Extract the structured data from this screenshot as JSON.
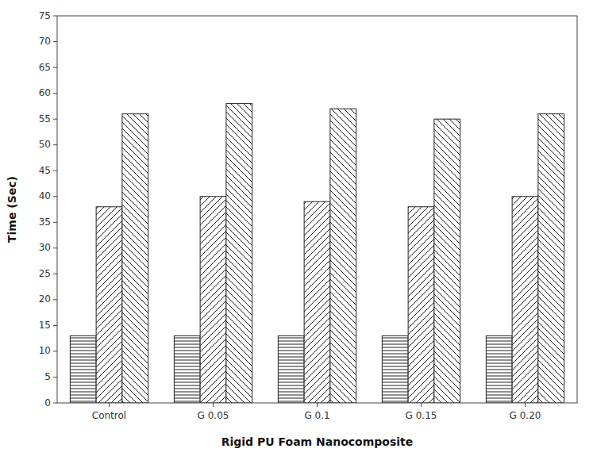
{
  "chart_data": {
    "type": "bar",
    "categories": [
      "Control",
      "G 0.05",
      "G 0.1",
      "G 0.15",
      "G 0.20"
    ],
    "series": [
      {
        "color": "#222222",
        "values": [
          13,
          13,
          13,
          13,
          13
        ]
      },
      {
        "color": "#222222",
        "values": [
          38,
          40,
          39,
          38,
          40
        ]
      },
      {
        "color": "#222222",
        "values": [
          56,
          58,
          57,
          55,
          56
        ]
      }
    ],
    "xlabel": "Rigid PU Foam Nanocomposite",
    "ylabel": "Time (Sec)",
    "ylim": [
      0,
      75
    ],
    "yticks": [
      0,
      5,
      10,
      15,
      20,
      25,
      30,
      35,
      40,
      45,
      50,
      55,
      60,
      65,
      70,
      75
    ],
    "grid": false
  }
}
